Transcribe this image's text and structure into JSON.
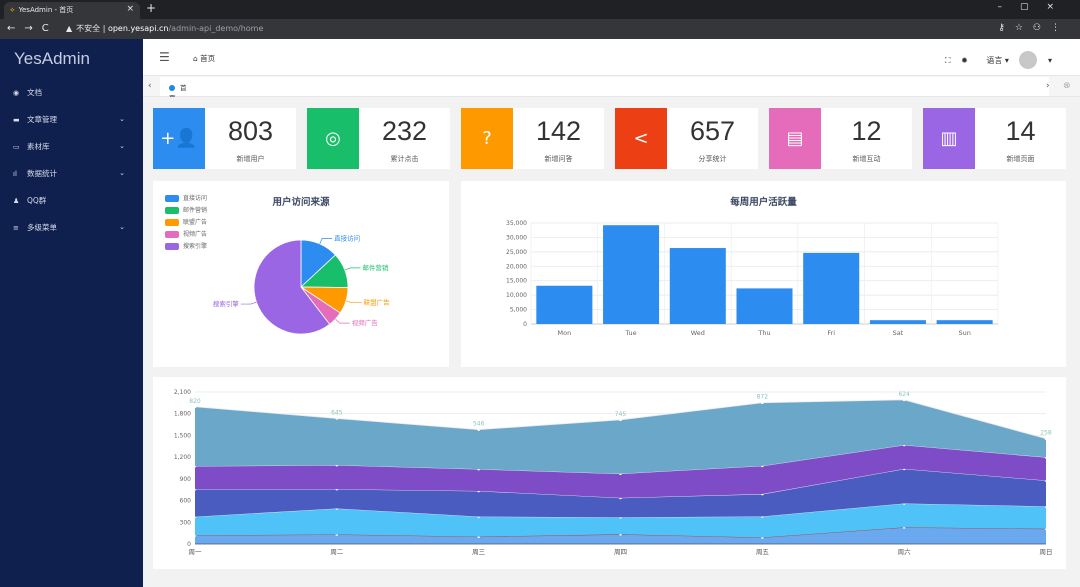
{
  "browser": {
    "tab_title": "YesAdmin - 首页",
    "insecure_label": "不安全",
    "url_host": "open.yesapi.cn",
    "url_path": "/admin-api_demo/home"
  },
  "sidebar": {
    "logo": "YesAdmin",
    "items": [
      {
        "icon": "github-icon",
        "label": "文档",
        "has_children": false
      },
      {
        "icon": "book-icon",
        "label": "文章管理",
        "has_children": true
      },
      {
        "icon": "folder-icon",
        "label": "素材库",
        "has_children": true
      },
      {
        "icon": "bar-chart-icon",
        "label": "数据统计",
        "has_children": true
      },
      {
        "icon": "bell-icon",
        "label": "QQ群",
        "has_children": false
      },
      {
        "icon": "list-icon",
        "label": "多级菜单",
        "has_children": true
      }
    ]
  },
  "header": {
    "breadcrumb": "首页",
    "language_label": "语言"
  },
  "tabs": [
    {
      "label": "首页",
      "active": true
    }
  ],
  "stats": [
    {
      "icon": "user-add-icon",
      "value": "803",
      "label": "新增用户",
      "color": "#2d8cf0"
    },
    {
      "icon": "locate-icon",
      "value": "232",
      "label": "累计点击",
      "color": "#19be6b"
    },
    {
      "icon": "help-icon",
      "value": "142",
      "label": "新增问答",
      "color": "#ff9900"
    },
    {
      "icon": "share-icon",
      "value": "657",
      "label": "分享统计",
      "color": "#ed3f14"
    },
    {
      "icon": "chat-icon",
      "value": "12",
      "label": "新增互动",
      "color": "#e46cbb"
    },
    {
      "icon": "map-icon",
      "value": "14",
      "label": "新增页面",
      "color": "#9a66e4"
    }
  ],
  "chart_data": [
    {
      "type": "pie",
      "title": "用户访问来源",
      "legend_position": "top-left",
      "slices": [
        {
          "name": "直接访问",
          "value": 335,
          "color": "#2d8cf0"
        },
        {
          "name": "邮件营销",
          "value": 310,
          "color": "#19be6b"
        },
        {
          "name": "联盟广告",
          "value": 234,
          "color": "#ff9900"
        },
        {
          "name": "视频广告",
          "value": 135,
          "color": "#e46cbb"
        },
        {
          "name": "搜索引擎",
          "value": 1548,
          "color": "#9a66e4"
        }
      ]
    },
    {
      "type": "bar",
      "title": "每周用户活跃量",
      "categories": [
        "Mon",
        "Tue",
        "Wed",
        "Thu",
        "Fri",
        "Sat",
        "Sun"
      ],
      "values": [
        13253,
        34235,
        26321,
        12340,
        24643,
        1322,
        1324
      ],
      "ylim": [
        0,
        35000
      ],
      "yticks": [
        "0",
        "5,000",
        "10,000",
        "15,000",
        "20,000",
        "25,000",
        "30,000",
        "35,000"
      ],
      "grid": true,
      "color": "#2d8cf0"
    },
    {
      "type": "area",
      "stacked": true,
      "categories": [
        "周一",
        "周二",
        "周三",
        "周四",
        "周五",
        "周六",
        "周日"
      ],
      "ylim": [
        0,
        2100
      ],
      "yticks": [
        "0",
        "300",
        "600",
        "900",
        "1,200",
        "1,500",
        "1,800",
        "2,100"
      ],
      "grid": true,
      "series": [
        {
          "values": [
            120,
            132,
            101,
            134,
            90,
            230,
            210
          ],
          "color": "#6aa8ef"
        },
        {
          "values": [
            257,
            358,
            278,
            234,
            290,
            330,
            310
          ],
          "color": "#4fc3f7"
        },
        {
          "values": [
            379,
            268,
            354,
            269,
            310,
            478,
            358
          ],
          "color": "#4a5cc0"
        },
        {
          "values": [
            320,
            332,
            301,
            334,
            390,
            330,
            320
          ],
          "color": "#7e4cc7"
        },
        {
          "values": [
            820,
            645,
            546,
            745,
            872,
            624,
            258
          ],
          "color": "#6ba7c8"
        }
      ],
      "top_labels": [
        "820",
        "645",
        "546",
        "745",
        "872",
        "624",
        "258"
      ]
    }
  ]
}
